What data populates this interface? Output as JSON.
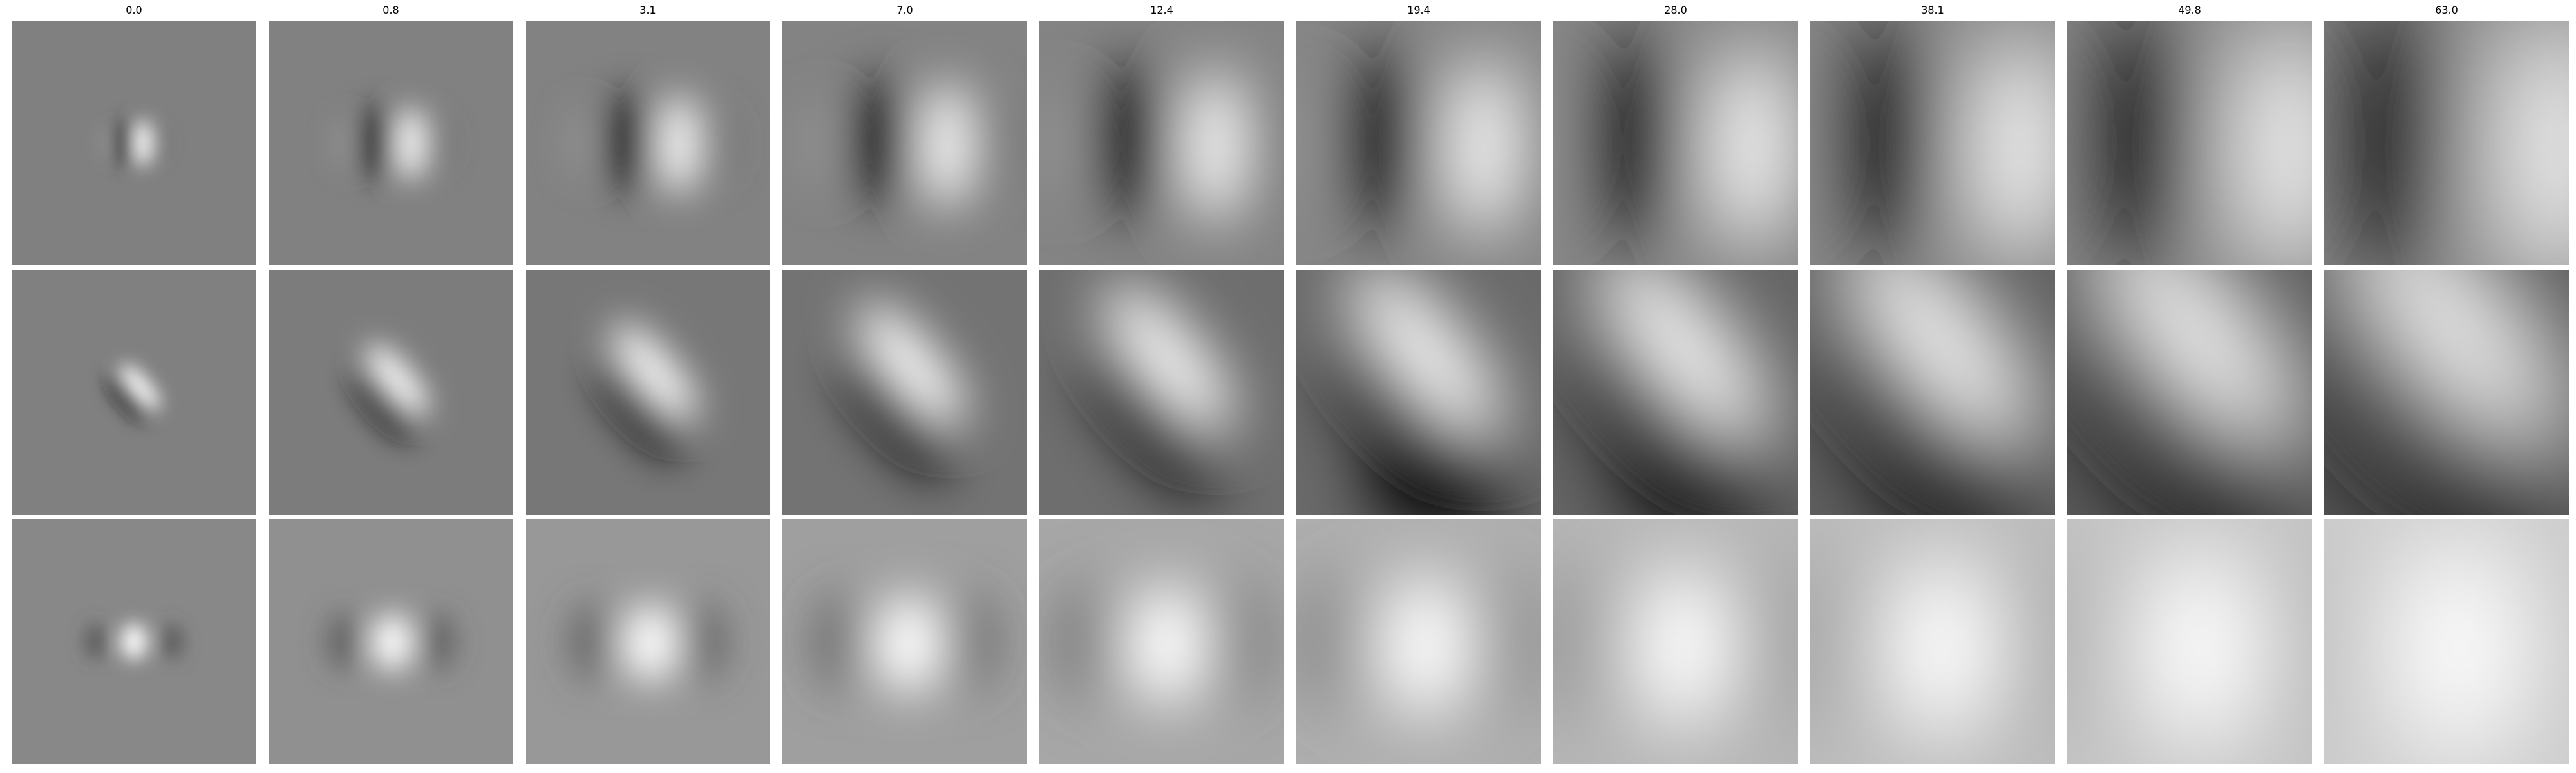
{
  "figure": {
    "column_titles": [
      "0.0",
      "0.8",
      "3.1",
      "7.0",
      "12.4",
      "19.4",
      "28.0",
      "38.1",
      "49.8",
      "63.0"
    ],
    "rows": 3,
    "colormap": "grayscale",
    "colors": {
      "background": "#ffffff",
      "neutral_gray": "#808080",
      "dark": "#000000",
      "light": "#ffffff"
    }
  }
}
